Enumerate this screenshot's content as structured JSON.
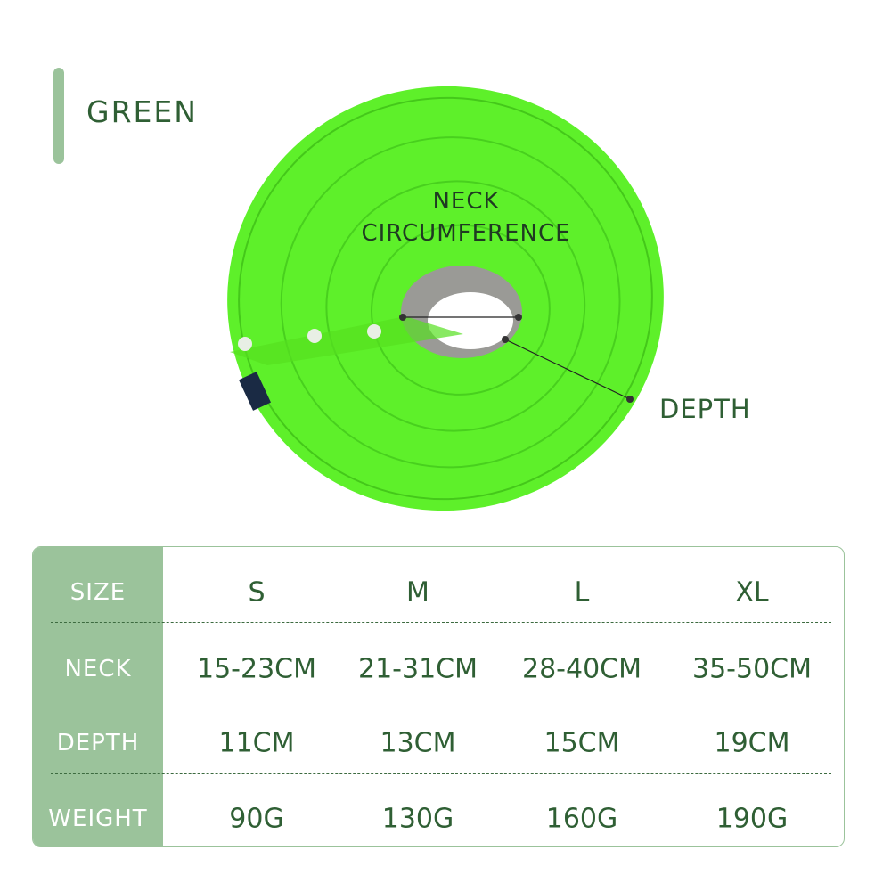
{
  "title": "GREEN",
  "labels": {
    "neck": "NECK\nCIRCUMFERENCE",
    "neck_line1": "NECK",
    "neck_line2": "CIRCUMFERENCE",
    "depth": "DEPTH"
  },
  "colors": {
    "product": "#66ff33",
    "accent": "#9bc39b",
    "text": "#2f5f34"
  },
  "table": {
    "rows": [
      {
        "header": "SIZE",
        "values": [
          "S",
          "M",
          "L",
          "XL"
        ]
      },
      {
        "header": "NECK",
        "values": [
          "15-23CM",
          "21-31CM",
          "28-40CM",
          "35-50CM"
        ]
      },
      {
        "header": "DEPTH",
        "values": [
          "11CM",
          "13CM",
          "15CM",
          "19CM"
        ]
      },
      {
        "header": "WEIGHT",
        "values": [
          "90G",
          "130G",
          "160G",
          "190G"
        ]
      }
    ]
  }
}
